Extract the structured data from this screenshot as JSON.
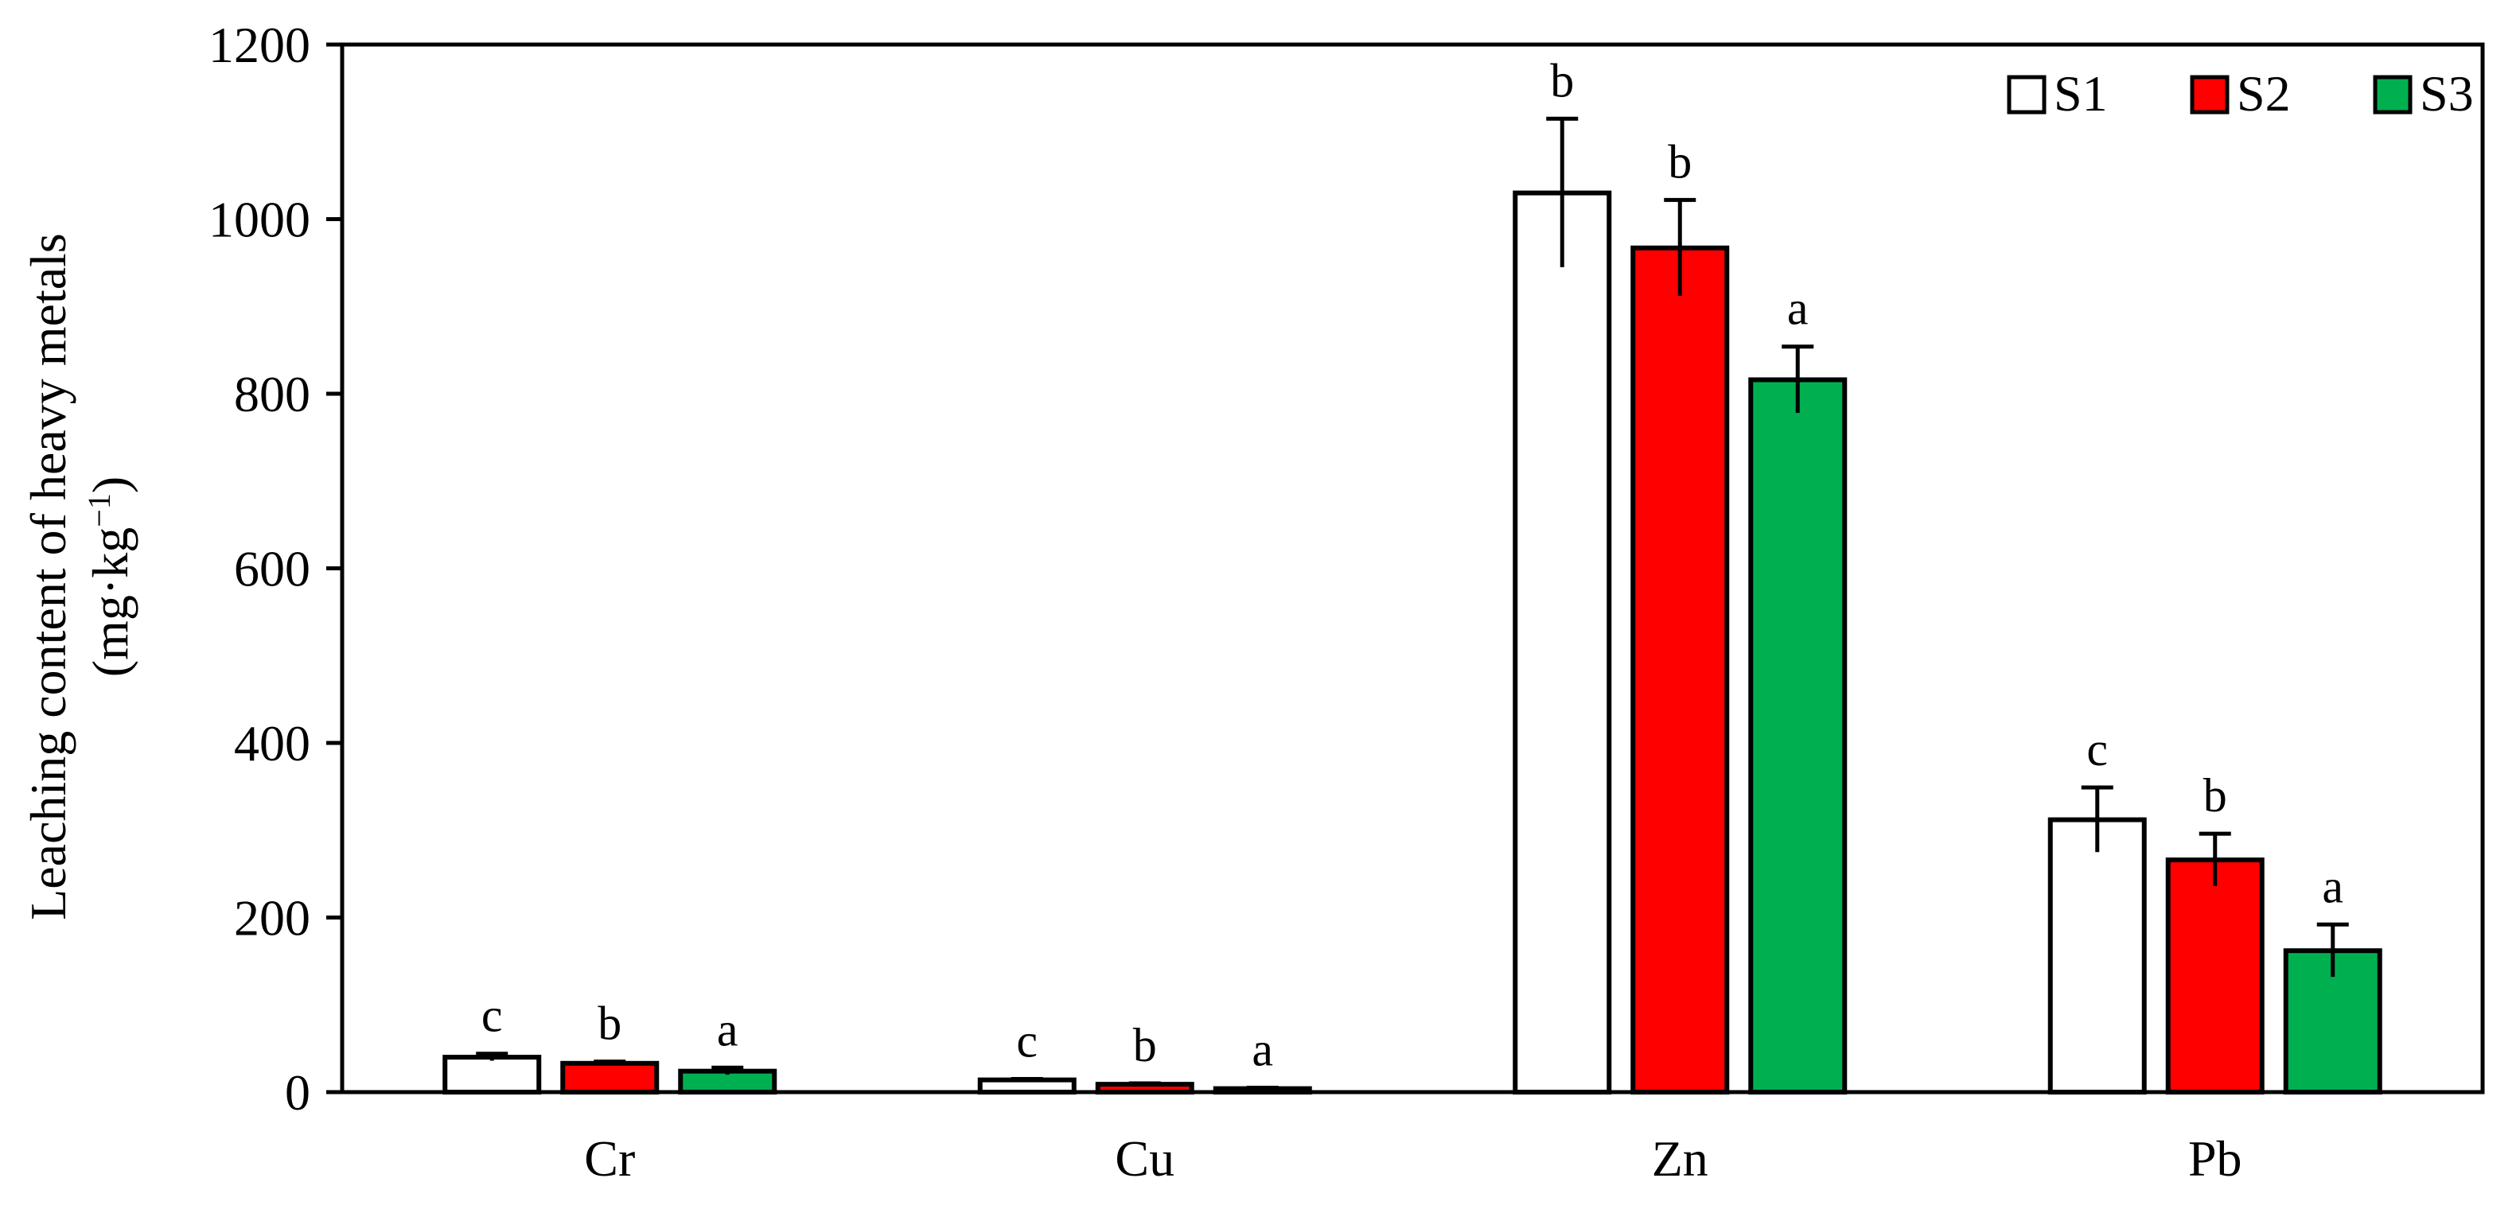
{
  "chart_data": {
    "type": "bar",
    "title": "",
    "xlabel": "",
    "ylabel": "Leaching content of  heavy metals",
    "ylabel_unit": {
      "open": "(",
      "prefix": "mg·kg",
      "exponent": "−1",
      "close": ")"
    },
    "ylim": [
      0,
      1200
    ],
    "yticks": [
      0,
      200,
      400,
      600,
      800,
      1000,
      1200
    ],
    "grid": false,
    "legend_position": "top-right",
    "categories": [
      "Cr",
      "Cu",
      "Zn",
      "Pb"
    ],
    "series": [
      {
        "name": "S1",
        "color": "#ffffff",
        "values": [
          40,
          14,
          1030,
          312
        ],
        "errors": [
          4,
          1,
          85,
          37
        ],
        "letters": [
          "c",
          "c",
          "b",
          "c"
        ]
      },
      {
        "name": "S2",
        "color": "#ff0000",
        "values": [
          33,
          9,
          967,
          266
        ],
        "errors": [
          2,
          1,
          55,
          30
        ],
        "letters": [
          "b",
          "b",
          "b",
          "b"
        ]
      },
      {
        "name": "S3",
        "color": "#00b050",
        "values": [
          24,
          4,
          816,
          162
        ],
        "errors": [
          4,
          1,
          38,
          30
        ],
        "letters": [
          "a",
          "a",
          "a",
          "a"
        ]
      }
    ]
  }
}
